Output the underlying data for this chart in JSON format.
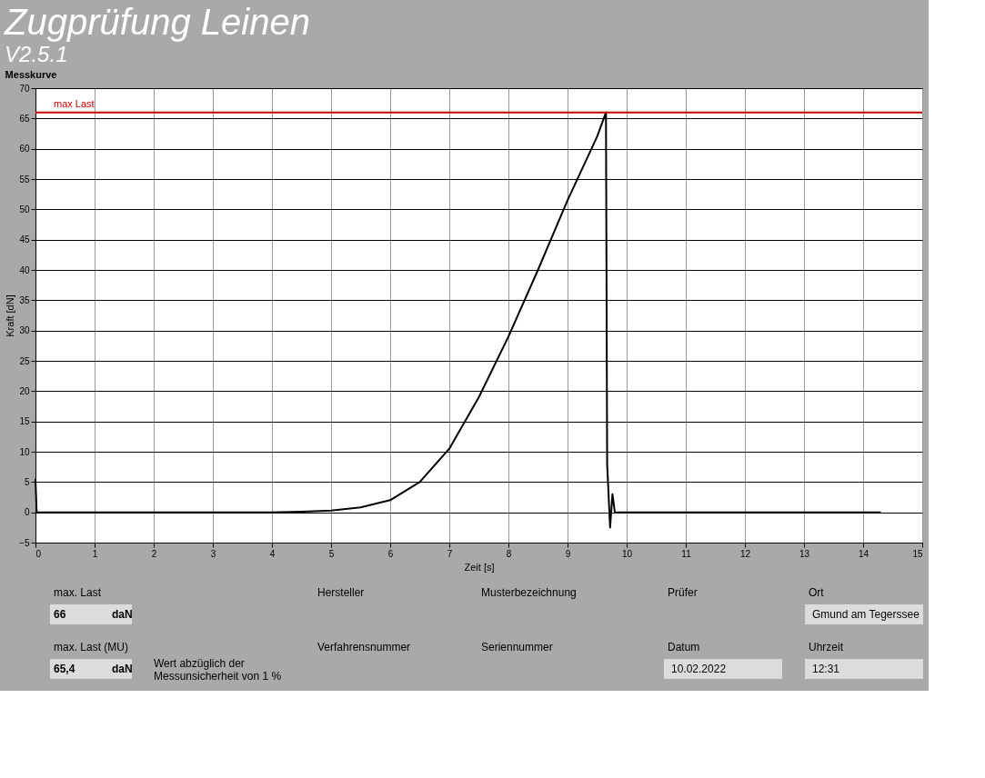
{
  "chart_data": {
    "type": "line",
    "title": "Zugprüfung Leinen",
    "subtitle": "V2.5.1",
    "xlabel": "Zeit [s]",
    "ylabel": "Kraft [dN]",
    "x": [
      0,
      0.02,
      1,
      2,
      3,
      4,
      4.5,
      5,
      5.5,
      6,
      6.5,
      7,
      7.5,
      8,
      8.5,
      9,
      9.5,
      9.65,
      9.67,
      9.72,
      9.76,
      9.8,
      11,
      12,
      13,
      14.3
    ],
    "series": [
      {
        "color": "#000000",
        "values": [
          5.5,
          0,
          0,
          0,
          0,
          0,
          0.1,
          0.3,
          0.8,
          2,
          5,
          10.5,
          19,
          29,
          40,
          51.5,
          62,
          66,
          8,
          -2.5,
          3,
          0,
          0,
          0,
          0,
          0
        ]
      }
    ],
    "xlim": [
      0,
      15
    ],
    "xticks": [
      0,
      1,
      2,
      3,
      4,
      5,
      6,
      7,
      8,
      9,
      10,
      11,
      12,
      13,
      14,
      15
    ],
    "ylim": [
      -5,
      70
    ],
    "yticks": [
      -5,
      0,
      5,
      10,
      15,
      20,
      25,
      30,
      35,
      40,
      45,
      50,
      55,
      60,
      65,
      70
    ],
    "grid": true,
    "legend": false,
    "marker": "none",
    "line_style": "solid",
    "ref_lines": [
      {
        "axis": "y",
        "value": 66,
        "label": "max Last",
        "color": "#cc0000"
      }
    ],
    "annotations": [
      "Messkurve",
      "max. Last",
      "66",
      "daN",
      "max. Last (MU)",
      "65,4",
      "daN",
      "Wert abzüglich der",
      "Messunsicherheit von 1 %",
      "Hersteller",
      "Musterbezeichnung",
      "Verfahrensnummer",
      "Seriennummer",
      "Prüfer",
      "Ort",
      "Gmund am Tegerssee",
      "Datum",
      "10.02.2022",
      "Uhrzeit",
      "12:31"
    ]
  }
}
